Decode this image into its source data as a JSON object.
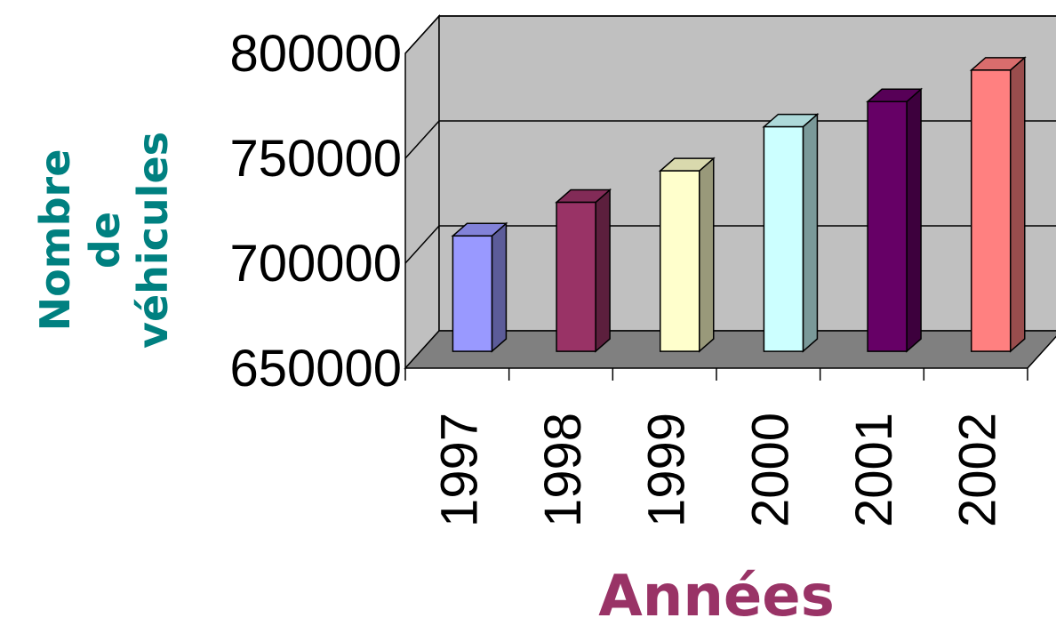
{
  "chart_data": {
    "type": "bar",
    "style": "3d-column",
    "categories": [
      "1997",
      "1998",
      "1999",
      "2000",
      "2001",
      "2002"
    ],
    "values": [
      705000,
      721000,
      736000,
      757000,
      769000,
      784000
    ],
    "bar_colors": [
      "#9999ff",
      "#993366",
      "#ffffcc",
      "#ccffff",
      "#660066",
      "#ff8080"
    ],
    "ylim": [
      650000,
      800000
    ],
    "yticks": [
      "650000",
      "700000",
      "750000",
      "800000"
    ],
    "ylabel_lines": [
      "Nombre",
      "de",
      "véhicules"
    ],
    "xlabel": "Années",
    "grid": true,
    "legend": "none",
    "colors": {
      "back_wall": "#c0c0c0",
      "floor": "#808080",
      "ylabel": "#008080",
      "xlabel": "#993366"
    }
  }
}
